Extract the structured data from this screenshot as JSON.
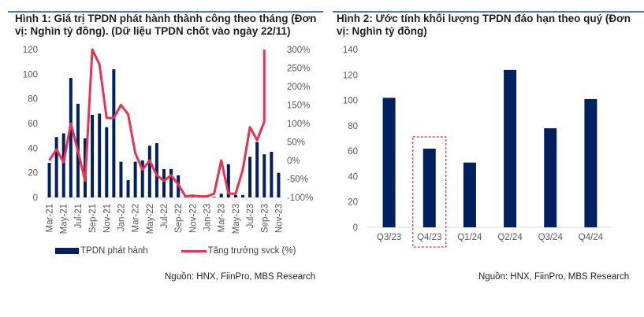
{
  "figure1": {
    "title": "Hình 1: Giá trị TPDN phát hành thành công theo tháng (Đơn vị: Nghìn tỷ đồng). (Dữ liệu TPDN chốt vào ngày 22/11)",
    "source": "Nguồn: HNX, FiinPro, MBS Research"
  },
  "figure2": {
    "title": "Hình 2: Ước tính khối lượng TPDN đáo hạn theo quý (Đơn vị: Nghìn tỷ đồng)",
    "source": "Nguồn: HNX, FiinPro, MBS Research"
  },
  "colors": {
    "bar": "#002060",
    "line": "#e8324f",
    "highlight": "#e8324f",
    "header_rule": "#4a7ebb"
  },
  "chart_data": [
    {
      "type": "bar",
      "combo": "bar+line",
      "title": "Hình 1: Giá trị TPDN phát hành thành công theo tháng (Đơn vị: Nghìn tỷ đồng). (Dữ liệu TPDN chốt vào ngày 22/11)",
      "x": [
        "Mar-21",
        "Apr-21",
        "May-21",
        "Jun-21",
        "Jul-21",
        "Aug-21",
        "Sep-21",
        "Oct-21",
        "Nov-21",
        "Dec-21",
        "Jan-22",
        "Feb-22",
        "Mar-22",
        "Apr-22",
        "May-22",
        "Jun-22",
        "Jul-22",
        "Aug-22",
        "Sep-22",
        "Oct-22",
        "Nov-22",
        "Dec-22",
        "Jan-23",
        "Feb-23",
        "Mar-23",
        "Apr-23",
        "May-23",
        "Jun-23",
        "Jul-23",
        "Aug-23",
        "Sep-23",
        "Oct-23",
        "Nov-23"
      ],
      "tick_labels": [
        "Mar-21",
        "May-21",
        "Jul-21",
        "Sep-21",
        "Nov-21",
        "Jan-22",
        "Mar-22",
        "May-22",
        "Jul-22",
        "Sep-22",
        "Nov-22",
        "Jan-23",
        "Mar-23",
        "May-23",
        "Jul-23",
        "Sep-23",
        "Nov-23"
      ],
      "series": [
        {
          "name": "TPDN phát hành",
          "type": "bar",
          "axis": "left",
          "values": [
            28,
            49,
            52,
            97,
            76,
            48,
            67,
            68,
            57,
            104,
            29,
            14,
            29,
            30,
            42,
            44,
            23,
            23,
            18,
            0.5,
            0.5,
            0.5,
            1,
            0.5,
            3,
            27,
            2,
            2,
            33,
            45,
            35,
            37,
            20
          ]
        },
        {
          "name": "Tăng trưởng svck (%)",
          "type": "line",
          "axis": "right",
          "values": [
            0,
            30,
            -5,
            100,
            25,
            -55,
            300,
            260,
            115,
            115,
            150,
            125,
            20,
            -25,
            0,
            -40,
            -55,
            -40,
            -65,
            -97,
            -95,
            -97,
            -97,
            -90,
            0,
            -90,
            -90,
            -25,
            90,
            55,
            105,
            null,
            null
          ],
          "spike_to": 300
        }
      ],
      "ylim": [
        0,
        120
      ],
      "yticks": [
        0,
        20,
        40,
        60,
        80,
        100,
        120
      ],
      "y2lim": [
        -100,
        300
      ],
      "y2ticks": [
        "-100%",
        "-50%",
        "0%",
        "50%",
        "100%",
        "150%",
        "200%",
        "250%",
        "300%"
      ],
      "legend": "bottom"
    },
    {
      "type": "bar",
      "title": "Hình 2: Ước tính khối lượng TPDN đáo hạn theo quý (Đơn vị: Nghìn tỷ đồng)",
      "categories": [
        "Q3/23",
        "Q4/23",
        "Q1/24",
        "Q2/24",
        "Q3/24",
        "Q4/24"
      ],
      "values": [
        102,
        62,
        51,
        124,
        78,
        101
      ],
      "highlighted": "Q4/23",
      "ylim": [
        0,
        140
      ],
      "yticks": [
        0,
        20,
        40,
        60,
        80,
        100,
        120,
        140
      ]
    }
  ]
}
